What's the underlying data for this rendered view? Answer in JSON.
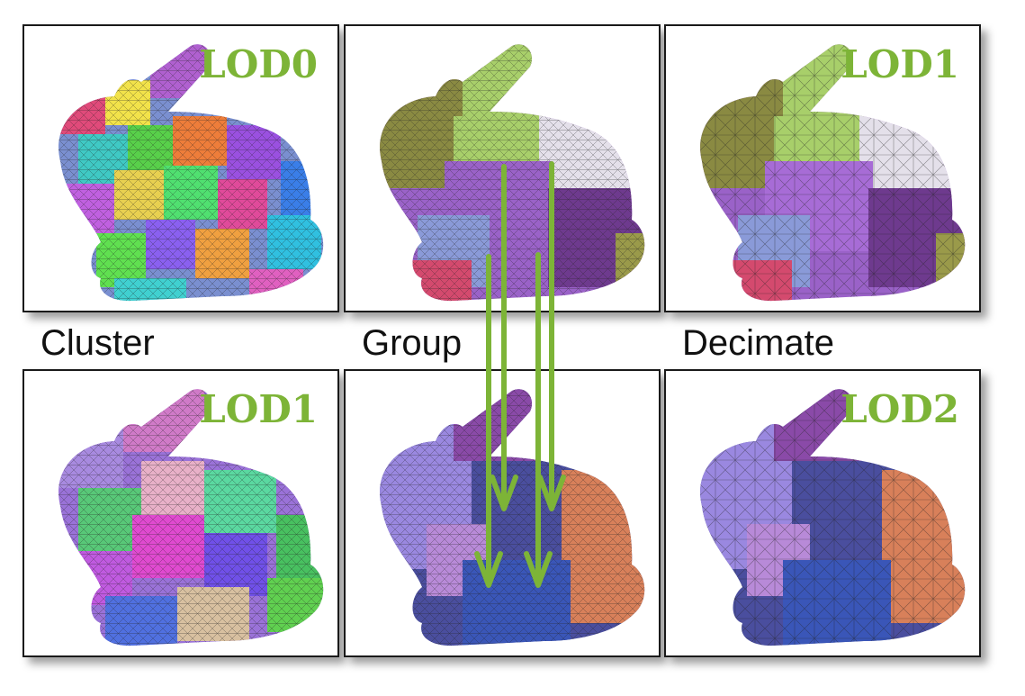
{
  "steps": {
    "cluster": "Cluster",
    "group": "Group",
    "decimate": "Decimate"
  },
  "panels": {
    "cluster_lod0": {
      "lod": "LOD0"
    },
    "group_top": {
      "lod": ""
    },
    "decimate_lod1": {
      "lod": "LOD1"
    },
    "cluster_lod1": {
      "lod": "LOD1"
    },
    "group_bottom": {
      "lod": ""
    },
    "decimate_lod2": {
      "lod": "LOD2"
    }
  },
  "colors": {
    "label_green": "#7db437",
    "arrow_green": "#7db437",
    "panel_border": "#1a1a1a"
  }
}
